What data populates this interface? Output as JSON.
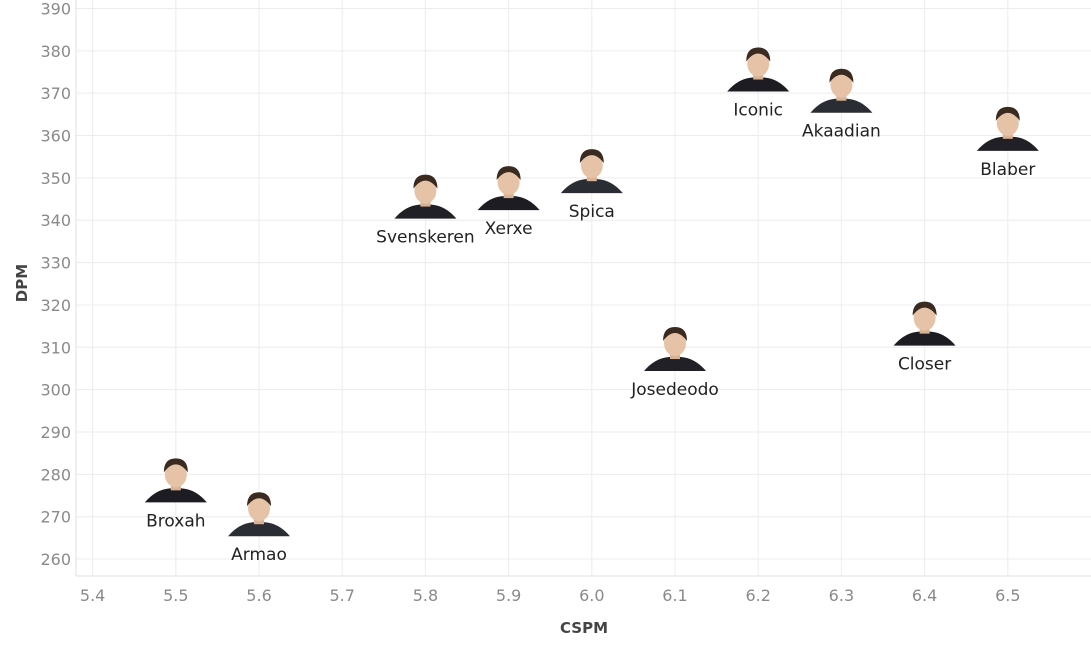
{
  "chart_data": {
    "type": "scatter",
    "xlabel": "CSPM",
    "ylabel": "DPM",
    "xlim": [
      5.38,
      6.6
    ],
    "ylim": [
      256,
      392
    ],
    "x_ticks": [
      "5.4",
      "5.5",
      "5.6",
      "5.7",
      "5.8",
      "5.9",
      "6.0",
      "6.1",
      "6.2",
      "6.3",
      "6.4",
      "6.5"
    ],
    "y_ticks": [
      "260",
      "270",
      "280",
      "290",
      "300",
      "310",
      "320",
      "330",
      "340",
      "350",
      "360",
      "370",
      "380",
      "390"
    ],
    "grid": true,
    "points": [
      {
        "name": "Broxah",
        "x": 5.5,
        "y": 280
      },
      {
        "name": "Armao",
        "x": 5.6,
        "y": 272
      },
      {
        "name": "Svenskeren",
        "x": 5.8,
        "y": 347
      },
      {
        "name": "Xerxe",
        "x": 5.9,
        "y": 349
      },
      {
        "name": "Spica",
        "x": 6.0,
        "y": 353
      },
      {
        "name": "Josedeodo",
        "x": 6.1,
        "y": 311
      },
      {
        "name": "Iconic",
        "x": 6.2,
        "y": 377
      },
      {
        "name": "Akaadian",
        "x": 6.3,
        "y": 372
      },
      {
        "name": "Blaber",
        "x": 6.5,
        "y": 363
      },
      {
        "name": "Closer",
        "x": 6.4,
        "y": 317
      }
    ]
  }
}
